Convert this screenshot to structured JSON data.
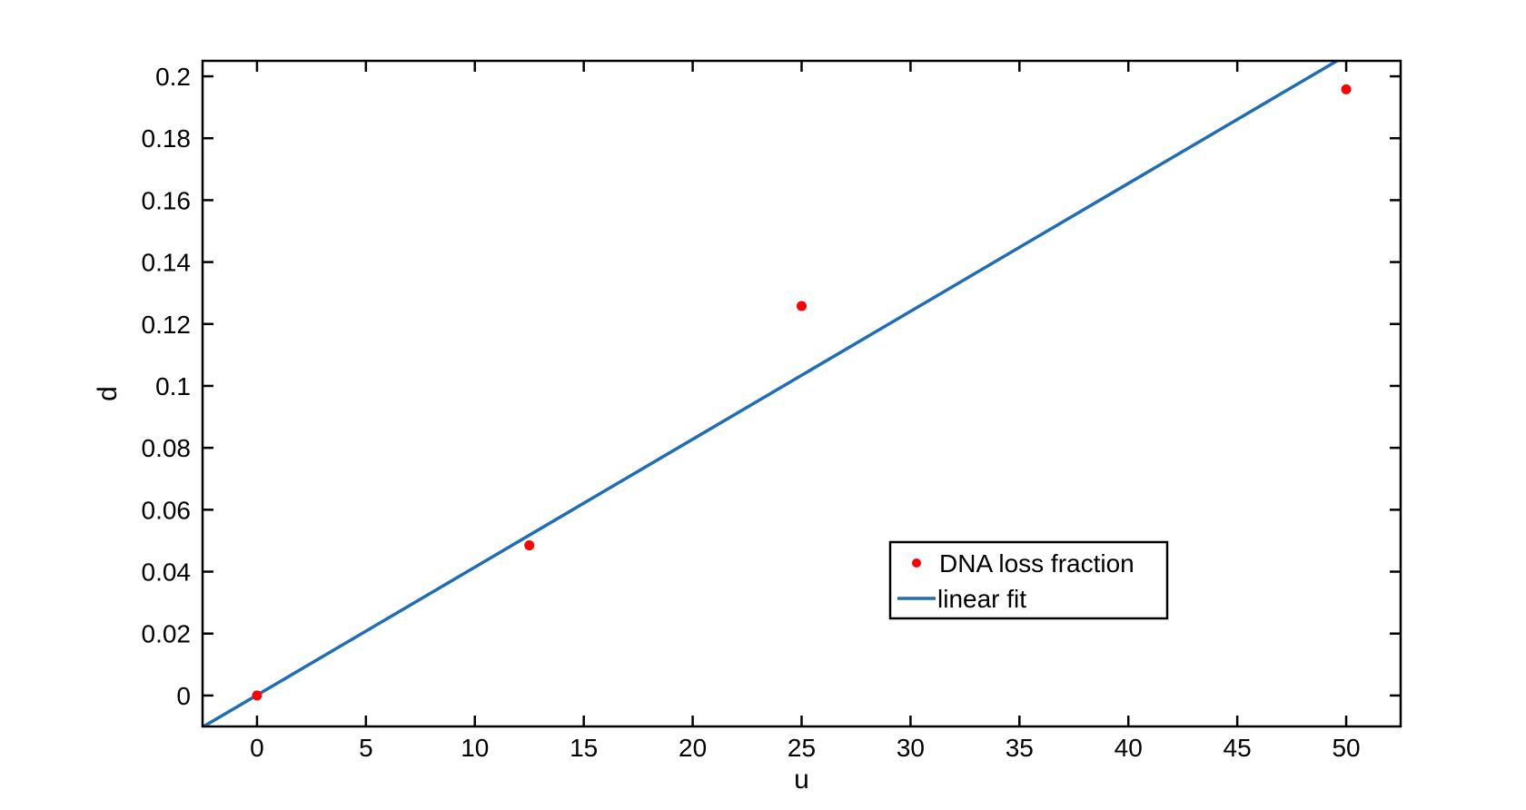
{
  "chart_data": {
    "type": "scatter",
    "title": "",
    "xlabel": "u",
    "ylabel": "d",
    "xlim": [
      -2.5,
      52.5
    ],
    "ylim": [
      -0.01,
      0.205
    ],
    "xticks": [
      0,
      5,
      10,
      15,
      20,
      25,
      30,
      35,
      40,
      45,
      50
    ],
    "xtick_labels": [
      "0",
      "5",
      "10",
      "15",
      "20",
      "25",
      "30",
      "35",
      "40",
      "45",
      "50"
    ],
    "yticks": [
      0,
      0.02,
      0.04,
      0.06,
      0.08,
      0.1,
      0.12,
      0.14,
      0.16,
      0.18,
      0.2
    ],
    "ytick_labels": [
      "0",
      "0.02",
      "0.04",
      "0.06",
      "0.08",
      "0.1",
      "0.12",
      "0.14",
      "0.16",
      "0.18",
      "0.2"
    ],
    "grid": false,
    "legend_position": "lower-right",
    "series": [
      {
        "name": "DNA loss fraction",
        "kind": "scatter",
        "color": "#ff0000",
        "x": [
          0,
          12.5,
          25,
          50
        ],
        "y": [
          0,
          0.0485,
          0.1258,
          0.1958
        ]
      },
      {
        "name": "linear fit",
        "kind": "line",
        "color": "#1f6db5",
        "x": [
          -2.5,
          49.7
        ],
        "y": [
          -0.0102,
          0.2055
        ]
      }
    ]
  }
}
